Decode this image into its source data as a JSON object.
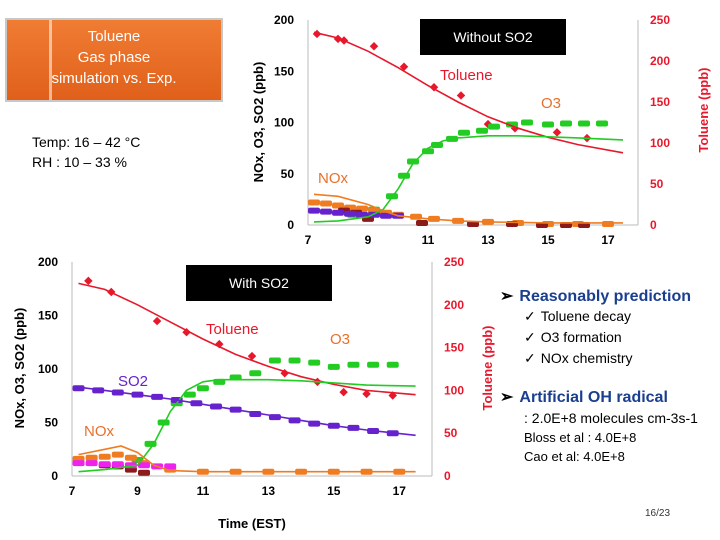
{
  "title_box": {
    "lines": [
      "Toluene",
      "Gas phase",
      "simulation vs. Exp."
    ]
  },
  "conditions": {
    "temp": "Temp: 16 – 42 °C",
    "rh": "RH : 10 – 33 %"
  },
  "colors": {
    "toluene": "#e8182c",
    "o3": "#22cc22",
    "nox": "#f07c22",
    "so2": "#6622cc",
    "no": "#8b1a1a",
    "so2pts": "#ee22ee",
    "title_bg": "#e8702a"
  },
  "right_panel": {
    "bullet1": "Reasonably prediction",
    "checks": [
      "Toluene decay",
      "O3 formation",
      "NOx chemistry"
    ],
    "bullet2": "Artificial OH radical",
    "oh_value": ": 2.0E+8 molecules cm-3s-1",
    "refs": [
      "Bloss et al : 4.0E+8",
      "Cao et al: 4.0E+8"
    ]
  },
  "page_number": "16/23",
  "chart_data": [
    {
      "type": "line",
      "title": "Without SO2",
      "ylabel": "NOx, O3, SO2 (ppb)",
      "y2label": "Toluene (ppb)",
      "xlabel": "",
      "xticks": [
        7,
        9,
        11,
        13,
        15,
        17
      ],
      "yticks": [
        0,
        50,
        100,
        150,
        200
      ],
      "y2ticks": [
        0,
        50,
        100,
        150,
        200,
        250
      ],
      "xlim": [
        7,
        18
      ],
      "ylim": [
        0,
        200
      ],
      "y2lim": [
        0,
        250
      ],
      "annotations": [
        "Toluene",
        "O3",
        "NOx"
      ],
      "series": [
        {
          "name": "Toluene",
          "axis": "y2",
          "kind": "line",
          "x": [
            7.2,
            8,
            9,
            10,
            11,
            12,
            13,
            14,
            15,
            16,
            17.5
          ],
          "y": [
            235,
            228,
            212,
            192,
            170,
            150,
            132,
            118,
            107,
            98,
            88
          ]
        },
        {
          "name": "Toluene",
          "axis": "y2",
          "kind": "points",
          "x": [
            7.3,
            8.0,
            8.2,
            9.2,
            10.2,
            11.2,
            12.1,
            13.0,
            13.9,
            15.3,
            16.3
          ],
          "y": [
            233,
            227,
            225,
            218,
            193,
            168,
            158,
            123,
            118,
            113,
            106
          ]
        },
        {
          "name": "O3",
          "axis": "y",
          "kind": "line",
          "x": [
            7.2,
            8,
            9,
            9.5,
            10,
            10.5,
            11,
            11.5,
            12,
            13,
            14,
            15,
            16,
            17.5
          ],
          "y": [
            3,
            4,
            8,
            15,
            35,
            60,
            75,
            82,
            85,
            87,
            87,
            86,
            85,
            83
          ]
        },
        {
          "name": "O3",
          "axis": "y",
          "kind": "points",
          "x": [
            8.5,
            9.2,
            9.8,
            10.2,
            10.5,
            11.0,
            11.3,
            11.8,
            12.2,
            12.8,
            13.2,
            13.8,
            14.3,
            15.0,
            15.6,
            16.2,
            16.8
          ],
          "y": [
            10,
            15,
            28,
            48,
            62,
            72,
            78,
            84,
            90,
            92,
            96,
            98,
            100,
            98,
            99,
            99,
            99
          ]
        },
        {
          "name": "NOx",
          "axis": "y",
          "kind": "line",
          "x": [
            7.2,
            8,
            9,
            9.5,
            10,
            11,
            12,
            13,
            14,
            15,
            16,
            17.5
          ],
          "y": [
            30,
            28,
            20,
            14,
            9,
            6,
            4,
            3,
            2.5,
            2,
            2,
            2
          ]
        },
        {
          "name": "NOx",
          "axis": "y",
          "kind": "points",
          "x": [
            7.2,
            7.6,
            8.0,
            8.4,
            8.8,
            9.2,
            9.6,
            10.0,
            10.6,
            11.2,
            12.0,
            13.0,
            14.0,
            15.0,
            16.0,
            17.0
          ],
          "y": [
            22,
            21,
            19,
            17,
            16,
            14,
            12,
            10,
            8,
            6,
            4,
            3,
            2,
            1,
            1,
            1
          ]
        },
        {
          "name": "NO",
          "axis": "y",
          "kind": "points",
          "x": [
            8.2,
            8.6,
            9.0,
            10.8,
            12.5,
            13.8,
            14.8,
            15.6,
            16.2
          ],
          "y": [
            14,
            12,
            6,
            2,
            1,
            1,
            0,
            0,
            0
          ]
        },
        {
          "name": "SO2",
          "axis": "y",
          "kind": "points",
          "x": [
            7.2,
            7.6,
            8.0,
            8.4,
            8.8,
            9.2,
            9.6,
            10.0
          ],
          "y": [
            14,
            13,
            12,
            11,
            10,
            10,
            9,
            9
          ]
        }
      ]
    },
    {
      "type": "line",
      "title": "With SO2",
      "ylabel": "NOx, O3, SO2 (ppb)",
      "y2label": "Toluene (ppb)",
      "xlabel": "Time (EST)",
      "xticks": [
        7,
        9,
        11,
        13,
        15,
        17
      ],
      "yticks": [
        0,
        50,
        100,
        150,
        200
      ],
      "y2ticks": [
        0,
        50,
        100,
        150,
        200,
        250
      ],
      "xlim": [
        7,
        18
      ],
      "ylim": [
        0,
        200
      ],
      "y2lim": [
        0,
        250
      ],
      "annotations": [
        "Toluene",
        "O3",
        "SO2",
        "NOx"
      ],
      "series": [
        {
          "name": "Toluene",
          "axis": "y2",
          "kind": "line",
          "x": [
            7.2,
            8,
            9,
            10,
            11,
            12,
            13,
            14,
            15,
            16,
            17.5
          ],
          "y": [
            225,
            218,
            200,
            180,
            160,
            142,
            128,
            116,
            107,
            100,
            95
          ]
        },
        {
          "name": "Toluene",
          "axis": "y2",
          "kind": "points",
          "x": [
            7.5,
            8.2,
            9.6,
            10.5,
            11.5,
            12.5,
            13.5,
            14.5,
            15.3,
            16.0,
            16.8
          ],
          "y": [
            228,
            215,
            181,
            168,
            154,
            140,
            120,
            110,
            98,
            96,
            94
          ]
        },
        {
          "name": "O3",
          "axis": "y",
          "kind": "line",
          "x": [
            7.2,
            8,
            9,
            9.5,
            10,
            10.5,
            11,
            11.5,
            12,
            13,
            14,
            15,
            16,
            17.5
          ],
          "y": [
            4,
            6,
            10,
            30,
            60,
            80,
            88,
            90,
            90,
            90,
            89,
            87,
            85,
            84
          ]
        },
        {
          "name": "O3",
          "axis": "y",
          "kind": "points",
          "x": [
            9.0,
            9.4,
            9.8,
            10.2,
            10.6,
            11.0,
            11.5,
            12.0,
            12.6,
            13.2,
            13.8,
            14.4,
            15.0,
            15.6,
            16.2,
            16.8
          ],
          "y": [
            15,
            30,
            50,
            68,
            76,
            82,
            88,
            92,
            96,
            108,
            108,
            106,
            102,
            104,
            104,
            104
          ]
        },
        {
          "name": "SO2",
          "axis": "y",
          "kind": "line",
          "x": [
            7.2,
            8,
            9,
            10,
            11,
            12,
            13,
            14,
            15,
            16,
            17.5
          ],
          "y": [
            83,
            80,
            76,
            72,
            67,
            62,
            57,
            52,
            47,
            43,
            38
          ]
        },
        {
          "name": "SO2",
          "axis": "y",
          "kind": "points",
          "x": [
            7.2,
            7.8,
            8.4,
            9.0,
            9.6,
            10.2,
            10.8,
            11.4,
            12.0,
            12.6,
            13.2,
            13.8,
            14.4,
            15.0,
            15.6,
            16.2,
            16.8
          ],
          "y": [
            82,
            80,
            78,
            76,
            74,
            71,
            68,
            65,
            62,
            58,
            55,
            52,
            49,
            47,
            45,
            42,
            40
          ]
        },
        {
          "name": "NOx",
          "axis": "y",
          "kind": "line",
          "x": [
            7.2,
            8,
            8.5,
            9,
            9.5,
            10,
            11,
            12,
            13,
            14,
            15,
            16,
            17.5
          ],
          "y": [
            20,
            25,
            28,
            22,
            10,
            5,
            4,
            4,
            4,
            4,
            4,
            4,
            4
          ]
        },
        {
          "name": "NOx",
          "axis": "y",
          "kind": "points",
          "x": [
            7.2,
            7.6,
            8.0,
            8.4,
            8.8,
            9.2,
            10.0,
            11.0,
            12.0,
            13.0,
            14.0,
            15.0,
            16.0,
            17.0
          ],
          "y": [
            16,
            17,
            18,
            20,
            17,
            12,
            6,
            4,
            4,
            4,
            4,
            4,
            4,
            4
          ]
        },
        {
          "name": "NO",
          "axis": "y",
          "kind": "points",
          "x": [
            8.0,
            8.4,
            8.8,
            9.2
          ],
          "y": [
            10,
            9,
            6,
            3
          ]
        },
        {
          "name": "SO2m",
          "axis": "y",
          "kind": "points",
          "x": [
            7.2,
            7.6,
            8.0,
            8.4,
            8.8,
            9.2,
            9.6,
            10.0
          ],
          "y": [
            12,
            12,
            11,
            11,
            10,
            10,
            9,
            9
          ]
        }
      ]
    }
  ]
}
